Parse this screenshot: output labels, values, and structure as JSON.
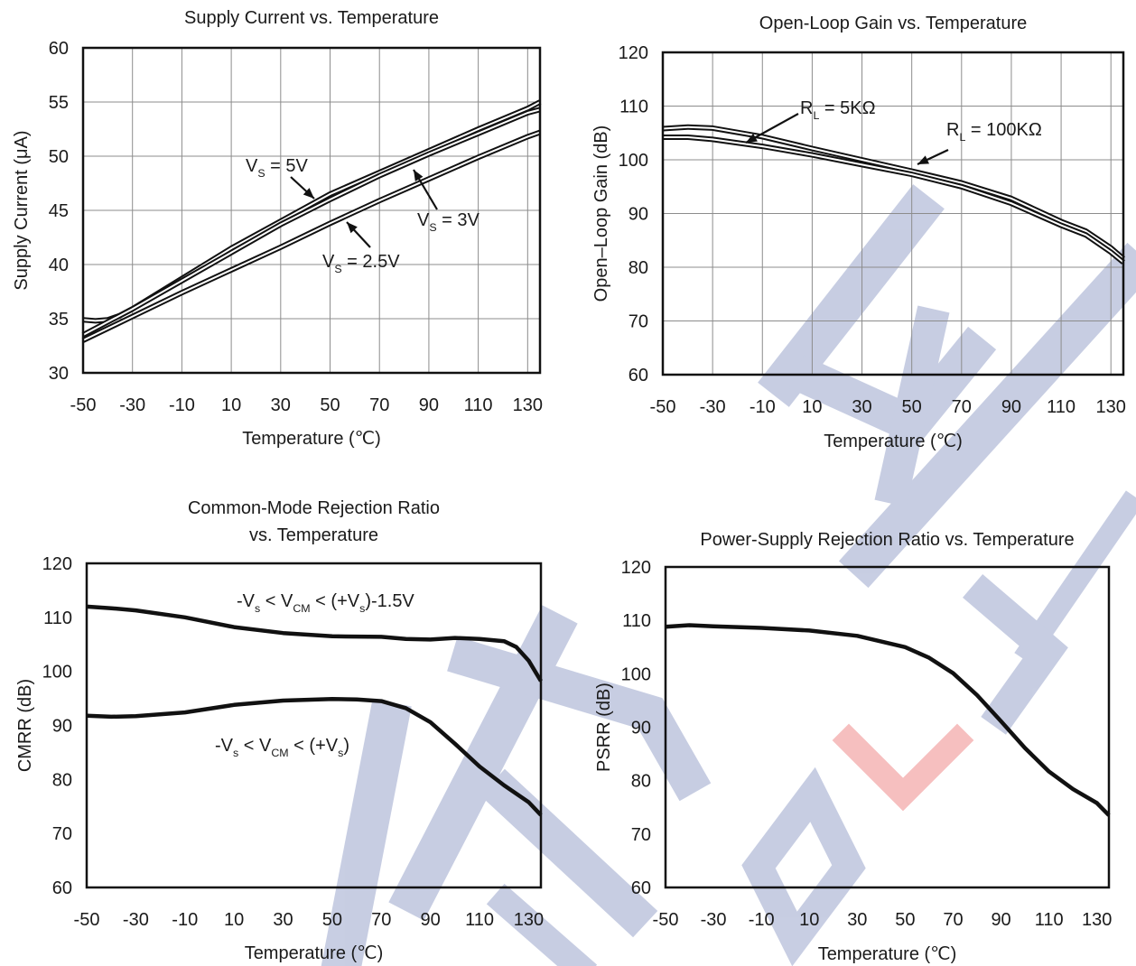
{
  "watermark": {
    "color": "#9aa6cc",
    "accent": "#f08c8c"
  },
  "chart_data": [
    {
      "type": "line",
      "title": [
        "Supply Current vs. Temperature"
      ],
      "xlabel": "Temperature (℃)",
      "ylabel": "Supply Current (μA)",
      "xlim": [
        -50,
        135
      ],
      "ylim": [
        30,
        60
      ],
      "xticks": [
        -50,
        -30,
        -10,
        10,
        30,
        50,
        70,
        90,
        110,
        130
      ],
      "yticks": [
        30,
        35,
        40,
        45,
        50,
        55,
        60
      ],
      "grid": true,
      "series": [
        {
          "name": "VS = 5V",
          "x": [
            -50,
            -45,
            -40,
            -35,
            -30,
            -10,
            10,
            30,
            50,
            70,
            90,
            110,
            130,
            135
          ],
          "y": [
            34.9,
            34.8,
            34.9,
            35.3,
            35.9,
            38.7,
            41.5,
            44.0,
            46.5,
            48.5,
            50.5,
            52.5,
            54.4,
            55.0
          ]
        },
        {
          "name": "VS = 3V",
          "x": [
            -50,
            -30,
            -10,
            10,
            30,
            50,
            70,
            90,
            110,
            130,
            135
          ],
          "y": [
            33.5,
            35.9,
            38.5,
            41.1,
            43.7,
            46.0,
            48.2,
            50.2,
            52.1,
            54.0,
            54.3
          ]
        },
        {
          "name": "VS = 2.5V",
          "x": [
            -50,
            -30,
            -10,
            10,
            30,
            50,
            70,
            90,
            110,
            130,
            135
          ],
          "y": [
            33.0,
            35.2,
            37.4,
            39.5,
            41.6,
            43.8,
            45.9,
            47.9,
            49.9,
            51.8,
            52.2
          ]
        }
      ],
      "annotations": [
        {
          "main": "V",
          "sub": "S",
          "rest": " = 5V"
        },
        {
          "main": "V",
          "sub": "S",
          "rest": " = 3V"
        },
        {
          "main": "V",
          "sub": "S",
          "rest": " = 2.5V"
        }
      ]
    },
    {
      "type": "line",
      "title": [
        "Open-Loop Gain vs. Temperature"
      ],
      "xlabel": "Temperature (℃)",
      "ylabel": "Open–Loop Gain (dB)",
      "xlim": [
        -50,
        135
      ],
      "ylim": [
        60,
        120
      ],
      "xticks": [
        -50,
        -30,
        -10,
        10,
        30,
        50,
        70,
        90,
        110,
        130
      ],
      "yticks": [
        60,
        70,
        80,
        90,
        100,
        110,
        120
      ],
      "grid": true,
      "series": [
        {
          "name": "RL = 5KΩ",
          "x": [
            -50,
            -40,
            -30,
            -10,
            10,
            30,
            50,
            70,
            90,
            110,
            120,
            130,
            135
          ],
          "y": [
            105.8,
            106.1,
            105.9,
            104.3,
            102.1,
            100.0,
            97.9,
            95.7,
            92.8,
            88.5,
            86.7,
            83.6,
            81.6
          ]
        },
        {
          "name": "RL = 100KΩ",
          "x": [
            -50,
            -40,
            -30,
            -10,
            10,
            30,
            50,
            70,
            90,
            110,
            120,
            130,
            135
          ],
          "y": [
            104.2,
            104.2,
            103.8,
            102.5,
            100.9,
            99.1,
            97.3,
            95.0,
            91.9,
            87.8,
            86.0,
            82.8,
            80.9
          ]
        }
      ],
      "annotations": [
        {
          "main": "R",
          "sub": "L",
          "rest": " = 5KΩ"
        },
        {
          "main": "R",
          "sub": "L",
          "rest": " = 100KΩ"
        }
      ]
    },
    {
      "type": "line",
      "title": [
        "Common-Mode Rejection Ratio",
        "vs. Temperature"
      ],
      "xlabel": "Temperature (℃)",
      "ylabel": "CMRR (dB)",
      "xlim": [
        -50,
        135
      ],
      "ylim": [
        60,
        120
      ],
      "xticks": [
        -50,
        -30,
        -10,
        10,
        30,
        50,
        70,
        90,
        110,
        130
      ],
      "yticks": [
        60,
        70,
        80,
        90,
        100,
        110,
        120
      ],
      "grid": false,
      "series": [
        {
          "name": "-Vs < VCM < (+Vs)-1.5V",
          "x": [
            -50,
            -40,
            -30,
            -10,
            10,
            30,
            50,
            70,
            80,
            90,
            100,
            110,
            120,
            125,
            130,
            135
          ],
          "y": [
            112.0,
            111.7,
            111.3,
            110.0,
            108.2,
            107.1,
            106.5,
            106.4,
            106.0,
            105.9,
            106.2,
            106.0,
            105.6,
            104.5,
            102.0,
            98.2
          ]
        },
        {
          "name": "-Vs < VCM < (+Vs)",
          "x": [
            -50,
            -40,
            -30,
            -10,
            10,
            30,
            50,
            60,
            70,
            80,
            90,
            100,
            110,
            120,
            130,
            135
          ],
          "y": [
            91.8,
            91.6,
            91.7,
            92.4,
            93.8,
            94.6,
            94.9,
            94.8,
            94.5,
            93.2,
            90.6,
            86.6,
            82.4,
            78.9,
            75.8,
            73.4
          ]
        }
      ],
      "annotations": [
        {
          "parts": [
            [
              "",
              "-V"
            ],
            [
              "sub",
              "s"
            ],
            [
              "",
              " < V"
            ],
            [
              "sub",
              "CM"
            ],
            [
              "",
              " < (+V"
            ],
            [
              "sub",
              "s"
            ],
            [
              "",
              ")-1.5V"
            ]
          ]
        },
        {
          "parts": [
            [
              "",
              "-V"
            ],
            [
              "sub",
              "s"
            ],
            [
              "",
              " < V"
            ],
            [
              "sub",
              "CM"
            ],
            [
              "",
              " < (+V"
            ],
            [
              "sub",
              "s"
            ],
            [
              "",
              ")"
            ]
          ]
        }
      ]
    },
    {
      "type": "line",
      "title": [
        "Power-Supply Rejection Ratio vs. Temperature"
      ],
      "xlabel": "Temperature (℃)",
      "ylabel": "PSRR (dB)",
      "xlim": [
        -50,
        135
      ],
      "ylim": [
        60,
        120
      ],
      "xticks": [
        -50,
        -30,
        -10,
        10,
        30,
        50,
        70,
        90,
        110,
        130
      ],
      "yticks": [
        60,
        70,
        80,
        90,
        100,
        110,
        120
      ],
      "grid": false,
      "series": [
        {
          "name": "PSRR",
          "x": [
            -50,
            -40,
            -30,
            -10,
            10,
            30,
            50,
            60,
            70,
            80,
            90,
            100,
            110,
            120,
            130,
            135
          ],
          "y": [
            108.8,
            109.1,
            108.9,
            108.6,
            108.1,
            107.1,
            105.0,
            103.0,
            100.1,
            96.0,
            91.1,
            86.1,
            81.7,
            78.4,
            75.8,
            73.5
          ]
        }
      ],
      "annotations": []
    }
  ]
}
